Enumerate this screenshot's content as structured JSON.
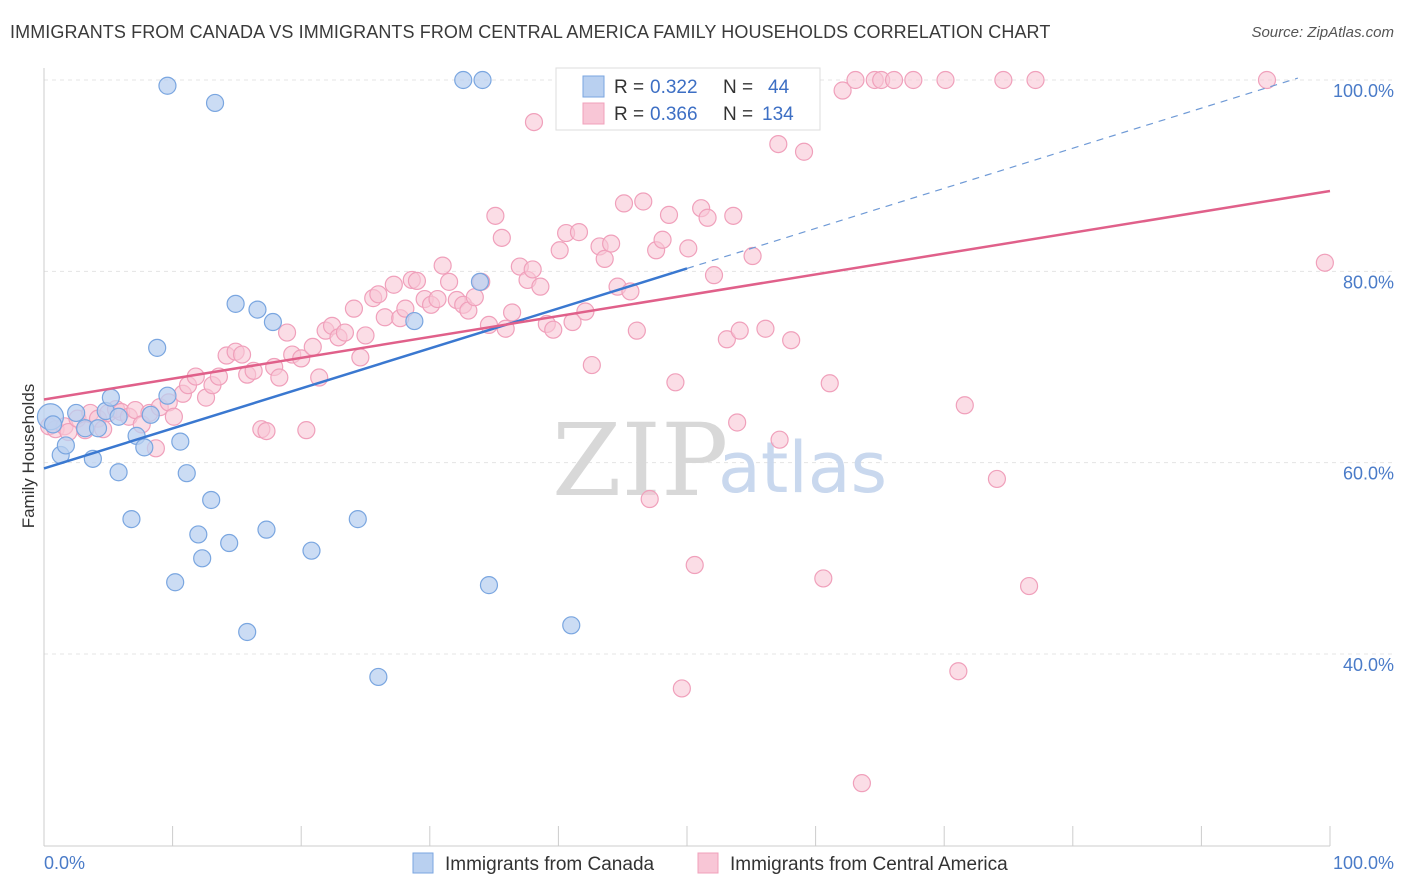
{
  "header": {
    "title": "IMMIGRANTS FROM CANADA VS IMMIGRANTS FROM CENTRAL AMERICA FAMILY HOUSEHOLDS CORRELATION CHART",
    "source": "Source: ZipAtlas.com"
  },
  "watermark": {
    "zip": "ZIP",
    "atlas": "atlas"
  },
  "legend": {
    "r_label": "R =",
    "n_label": "N =",
    "canada": {
      "r": "0.322",
      "n": "44"
    },
    "central": {
      "r": "0.366",
      "n": "134"
    }
  },
  "chart_data": {
    "type": "scatter",
    "title": "IMMIGRANTS FROM CANADA VS IMMIGRANTS FROM CENTRAL AMERICA FAMILY HOUSEHOLDS CORRELATION CHART",
    "xlabel": "",
    "ylabel": "Family Households",
    "xlim": [
      0,
      100
    ],
    "ylim": [
      20,
      102
    ],
    "x_tick_labels": [
      "0.0%",
      "100.0%"
    ],
    "y_ticks": [
      {
        "value": 40,
        "label": "40.0%"
      },
      {
        "value": 60,
        "label": "60.0%"
      },
      {
        "value": 80,
        "label": "80.0%"
      },
      {
        "value": 100,
        "label": "100.0%"
      }
    ],
    "grid": true,
    "legend_position": "top-center",
    "series": [
      {
        "name": "Immigrants from Canada",
        "color": "#7aa6e0",
        "fill": "#b9d0f0",
        "r": 0.322,
        "n": 44,
        "trend": {
          "x": [
            0,
            50
          ],
          "y": [
            59.4,
            80.3
          ],
          "color": "#3a78d0",
          "dashed_extension": {
            "x": [
              50,
              97.5
            ],
            "y": [
              80.3,
              100.2
            ]
          }
        },
        "points": [
          [
            0.5,
            64.8
          ],
          [
            0.7,
            64.0
          ],
          [
            1.3,
            60.8
          ],
          [
            1.7,
            61.8
          ],
          [
            2.5,
            65.2
          ],
          [
            3.2,
            63.6
          ],
          [
            3.8,
            60.4
          ],
          [
            4.2,
            63.6
          ],
          [
            4.8,
            65.4
          ],
          [
            5.2,
            66.8
          ],
          [
            5.8,
            64.8
          ],
          [
            5.8,
            59.0
          ],
          [
            6.8,
            54.1
          ],
          [
            7.2,
            62.8
          ],
          [
            7.8,
            61.6
          ],
          [
            8.3,
            65.0
          ],
          [
            8.8,
            72.0
          ],
          [
            9.6,
            67.0
          ],
          [
            9.6,
            99.4
          ],
          [
            10.2,
            47.5
          ],
          [
            10.6,
            62.2
          ],
          [
            11.1,
            58.9
          ],
          [
            12.0,
            52.5
          ],
          [
            12.3,
            50.0
          ],
          [
            13.0,
            56.1
          ],
          [
            13.3,
            97.6
          ],
          [
            14.4,
            51.6
          ],
          [
            14.9,
            76.6
          ],
          [
            15.8,
            42.3
          ],
          [
            16.6,
            76.0
          ],
          [
            17.3,
            53.0
          ],
          [
            17.8,
            74.7
          ],
          [
            20.8,
            50.8
          ],
          [
            24.4,
            54.1
          ],
          [
            26.0,
            37.6
          ],
          [
            28.8,
            74.8
          ],
          [
            32.6,
            100.0
          ],
          [
            34.1,
            100.0
          ],
          [
            33.9,
            78.9
          ],
          [
            34.6,
            47.2
          ],
          [
            41.0,
            43.0
          ],
          [
            44.9,
            100.0
          ],
          [
            47.0,
            99.0
          ],
          [
            50.4,
            99.6
          ]
        ]
      },
      {
        "name": "Immigrants from Central America",
        "color": "#f0a0bb",
        "fill": "#f8c6d6",
        "r": 0.366,
        "n": 134,
        "trend": {
          "x": [
            0,
            100
          ],
          "y": [
            66.6,
            88.4
          ],
          "color": "#e0608a"
        },
        "points": [
          [
            0.4,
            63.8
          ],
          [
            0.9,
            63.5
          ],
          [
            1.6,
            63.8
          ],
          [
            1.9,
            63.2
          ],
          [
            2.6,
            64.6
          ],
          [
            3.2,
            63.4
          ],
          [
            3.6,
            65.2
          ],
          [
            4.2,
            64.6
          ],
          [
            4.6,
            63.5
          ],
          [
            5.0,
            65.2
          ],
          [
            5.6,
            65.6
          ],
          [
            6.0,
            65.3
          ],
          [
            6.6,
            64.8
          ],
          [
            7.1,
            65.5
          ],
          [
            7.6,
            64.0
          ],
          [
            8.2,
            65.2
          ],
          [
            8.7,
            61.5
          ],
          [
            9.0,
            65.8
          ],
          [
            9.7,
            66.3
          ],
          [
            10.1,
            64.8
          ],
          [
            10.8,
            67.2
          ],
          [
            11.2,
            68.1
          ],
          [
            11.8,
            69.0
          ],
          [
            12.6,
            66.8
          ],
          [
            13.1,
            68.1
          ],
          [
            13.6,
            69.0
          ],
          [
            14.2,
            71.2
          ],
          [
            14.9,
            71.6
          ],
          [
            15.4,
            71.3
          ],
          [
            15.8,
            69.2
          ],
          [
            16.3,
            69.6
          ],
          [
            16.9,
            63.5
          ],
          [
            17.3,
            63.3
          ],
          [
            17.9,
            70.0
          ],
          [
            18.3,
            68.9
          ],
          [
            18.9,
            73.6
          ],
          [
            19.3,
            71.3
          ],
          [
            20.0,
            70.9
          ],
          [
            20.4,
            63.4
          ],
          [
            20.9,
            72.1
          ],
          [
            21.4,
            68.9
          ],
          [
            21.9,
            73.8
          ],
          [
            22.4,
            74.3
          ],
          [
            22.9,
            73.1
          ],
          [
            23.4,
            73.6
          ],
          [
            24.1,
            76.1
          ],
          [
            24.6,
            71.0
          ],
          [
            25.0,
            73.3
          ],
          [
            25.6,
            77.2
          ],
          [
            26.0,
            77.6
          ],
          [
            26.5,
            75.2
          ],
          [
            27.2,
            78.6
          ],
          [
            27.7,
            75.1
          ],
          [
            28.1,
            76.1
          ],
          [
            28.6,
            79.1
          ],
          [
            29.0,
            79.0
          ],
          [
            29.6,
            77.1
          ],
          [
            30.1,
            76.5
          ],
          [
            30.6,
            77.1
          ],
          [
            31.0,
            80.6
          ],
          [
            31.5,
            78.9
          ],
          [
            32.1,
            77.0
          ],
          [
            32.6,
            76.5
          ],
          [
            33.0,
            75.9
          ],
          [
            33.5,
            77.3
          ],
          [
            34.0,
            78.9
          ],
          [
            34.6,
            74.4
          ],
          [
            35.1,
            85.8
          ],
          [
            35.6,
            83.5
          ],
          [
            35.9,
            74.0
          ],
          [
            36.4,
            75.7
          ],
          [
            37.0,
            80.5
          ],
          [
            37.6,
            79.1
          ],
          [
            38.0,
            80.2
          ],
          [
            38.6,
            78.4
          ],
          [
            39.1,
            74.5
          ],
          [
            39.6,
            73.9
          ],
          [
            40.1,
            82.2
          ],
          [
            40.6,
            84.0
          ],
          [
            41.1,
            74.7
          ],
          [
            41.6,
            84.1
          ],
          [
            42.1,
            75.8
          ],
          [
            42.6,
            70.2
          ],
          [
            43.2,
            82.6
          ],
          [
            43.6,
            81.3
          ],
          [
            44.1,
            82.9
          ],
          [
            44.6,
            78.4
          ],
          [
            45.1,
            87.1
          ],
          [
            45.6,
            77.9
          ],
          [
            46.1,
            73.8
          ],
          [
            46.6,
            87.3
          ],
          [
            47.1,
            56.2
          ],
          [
            47.6,
            82.2
          ],
          [
            48.1,
            83.3
          ],
          [
            48.6,
            85.9
          ],
          [
            49.1,
            68.4
          ],
          [
            49.6,
            36.4
          ],
          [
            50.1,
            82.4
          ],
          [
            50.6,
            49.3
          ],
          [
            51.1,
            86.6
          ],
          [
            51.6,
            85.6
          ],
          [
            52.1,
            79.6
          ],
          [
            53.1,
            72.9
          ],
          [
            53.6,
            85.8
          ],
          [
            53.9,
            64.2
          ],
          [
            54.1,
            73.8
          ],
          [
            55.1,
            81.6
          ],
          [
            56.1,
            74.0
          ],
          [
            57.1,
            93.3
          ],
          [
            57.2,
            62.4
          ],
          [
            58.1,
            72.8
          ],
          [
            59.1,
            92.5
          ],
          [
            59.1,
            100.0
          ],
          [
            60.6,
            47.9
          ],
          [
            61.1,
            68.3
          ],
          [
            62.1,
            98.9
          ],
          [
            63.1,
            100.0
          ],
          [
            64.6,
            100.0
          ],
          [
            65.1,
            100.0
          ],
          [
            66.1,
            100.0
          ],
          [
            67.6,
            100.0
          ],
          [
            70.1,
            100.0
          ],
          [
            71.1,
            38.2
          ],
          [
            71.6,
            66.0
          ],
          [
            74.1,
            58.3
          ],
          [
            76.6,
            47.1
          ],
          [
            77.1,
            100.0
          ],
          [
            95.1,
            100.0
          ],
          [
            99.6,
            80.9
          ],
          [
            74.6,
            100.0
          ],
          [
            55.6,
            100.0
          ],
          [
            46.6,
            100.0
          ],
          [
            38.1,
            95.6
          ],
          [
            63.6,
            26.5
          ]
        ]
      }
    ]
  },
  "bottom_legend": {
    "canada_label": "Immigrants from Canada",
    "central_label": "Immigrants from Central America"
  }
}
